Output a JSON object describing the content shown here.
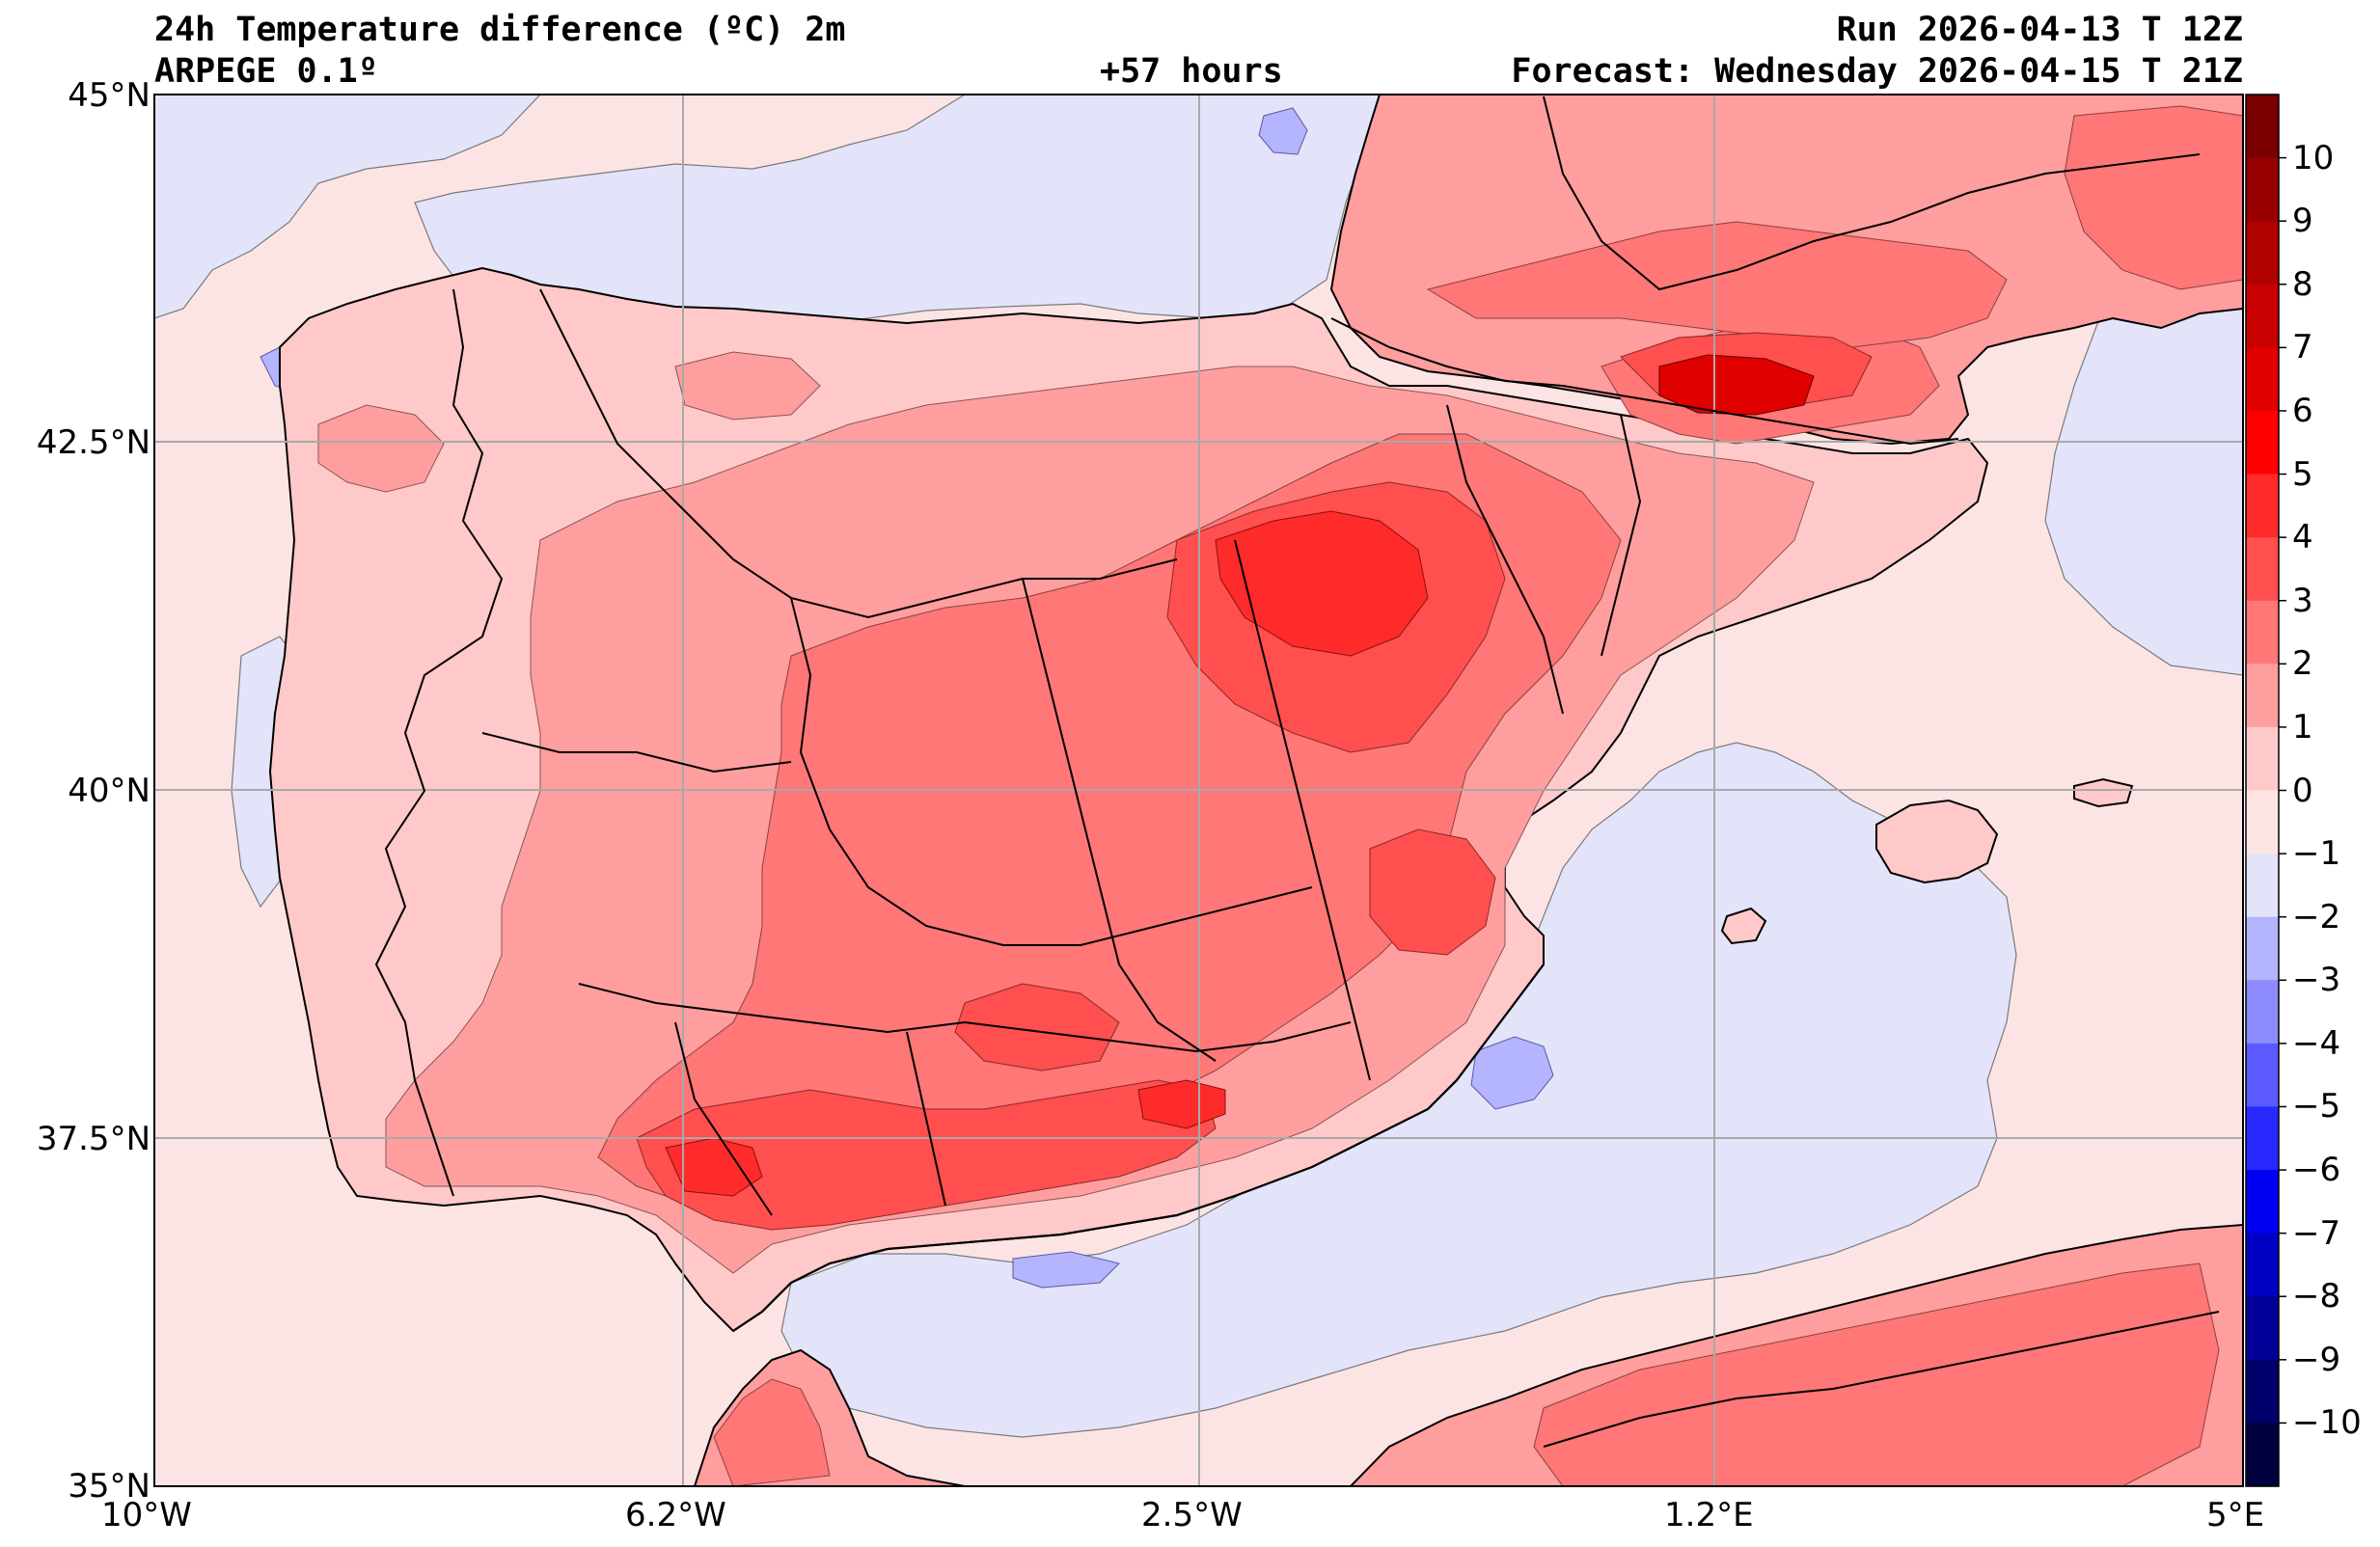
{
  "header": {
    "title": "24h Temperature difference (ºC) 2m",
    "model": "ARPEGE 0.1º",
    "lead": "+57 hours",
    "run": "Run 2026-04-13 T 12Z",
    "forecast": "Forecast: Wednesday 2026-04-15 T 21Z"
  },
  "axes": {
    "lat_labels": [
      "45°N",
      "42.5°N",
      "40°N",
      "37.5°N",
      "35°N"
    ],
    "lon_labels": [
      "10°W",
      "6.2°W",
      "2.5°W",
      "1.2°E",
      "5°E"
    ],
    "lat_range": [
      35,
      45
    ],
    "lon_range": [
      -10,
      5
    ]
  },
  "colorbar": {
    "range": [
      -11,
      11
    ],
    "ticks": [
      "10",
      "9",
      "8",
      "7",
      "6",
      "5",
      "4",
      "3",
      "2",
      "1",
      "0",
      "−1",
      "−2",
      "−3",
      "−4",
      "−5",
      "−6",
      "−7",
      "−8",
      "−9",
      "−10"
    ],
    "colors_top_to_bottom": [
      "#7a0000",
      "#960000",
      "#b00000",
      "#c80000",
      "#e00000",
      "#ff0000",
      "#ff2a2a",
      "#ff4f4f",
      "#ff7777",
      "#ff9e9e",
      "#ffc9c9",
      "#ffe4e4",
      "#e3e3fa",
      "#b4b4ff",
      "#8c8cff",
      "#5a5aff",
      "#2828ff",
      "#0000f0",
      "#0000c4",
      "#000096",
      "#00006c",
      "#00003c"
    ]
  },
  "colors": {
    "sea_background": "#fde4e4",
    "cool_sea": "#e3e3fa",
    "cool_patch": "#b4b4ff",
    "land_warm_1": "#ffc9c9",
    "land_warm_2": "#ff9e9e",
    "land_warm_3": "#ff7777",
    "land_warm_4": "#ff4f4f",
    "land_warm_5": "#ff2a2a",
    "hot_core": "#e00000",
    "grid": "#a9a9a9",
    "border": "#000000"
  }
}
